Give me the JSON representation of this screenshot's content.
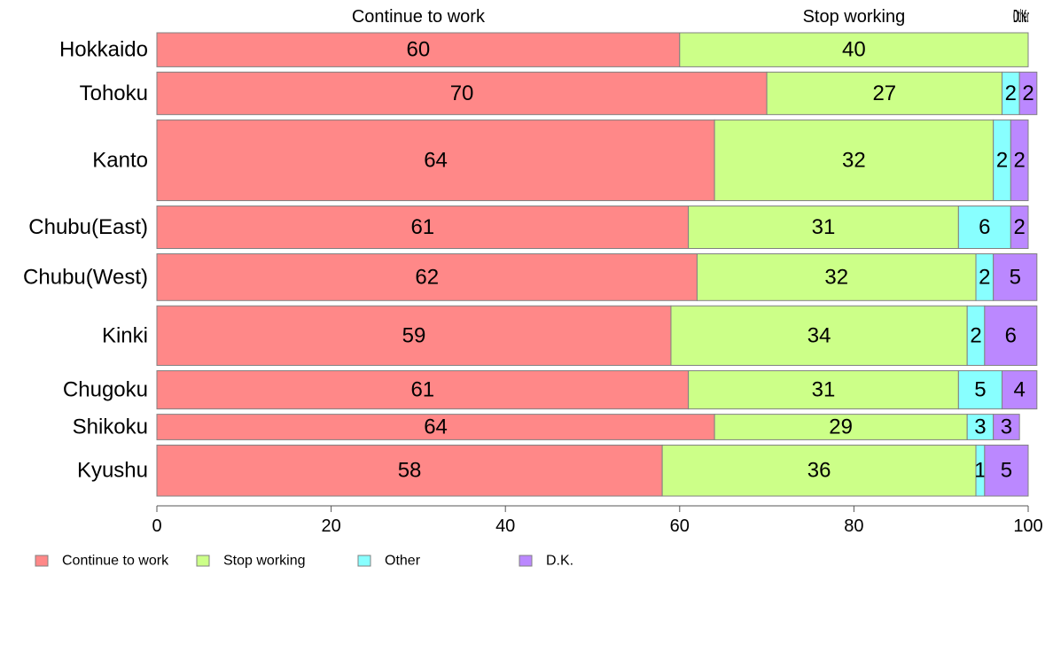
{
  "chart_data": {
    "type": "bar",
    "orientation": "horizontal",
    "stacked": true,
    "categories": [
      "Hokkaido",
      "Tohoku",
      "Kanto",
      "Chubu(East)",
      "Chubu(West)",
      "Kinki",
      "Chugoku",
      "Shikoku",
      "Kyushu"
    ],
    "series": [
      {
        "name": "Continue to work",
        "color": "#FF8888",
        "values": [
          60,
          70,
          64,
          61,
          62,
          59,
          61,
          64,
          58
        ]
      },
      {
        "name": "Stop working",
        "color": "#CCFF88",
        "values": [
          40,
          27,
          32,
          31,
          32,
          34,
          31,
          29,
          36
        ]
      },
      {
        "name": "Other",
        "color": "#88FFFF",
        "values": [
          0,
          2,
          2,
          6,
          2,
          2,
          5,
          3,
          1
        ]
      },
      {
        "name": "D.K.",
        "color": "#BB88FF",
        "values": [
          0,
          2,
          2,
          2,
          5,
          6,
          4,
          3,
          5
        ]
      }
    ],
    "top_labels": [
      "Continue to work",
      "Stop working",
      "Other",
      "D.K."
    ],
    "relative_bar_widths": [
      8,
      10,
      19,
      10,
      11,
      14,
      9,
      6,
      12
    ],
    "xlim": [
      0,
      100
    ],
    "xticks": [
      0,
      20,
      40,
      60,
      80,
      100
    ],
    "xlabel": "",
    "ylabel": "",
    "grid": false,
    "legend_position": "bottom-left"
  }
}
